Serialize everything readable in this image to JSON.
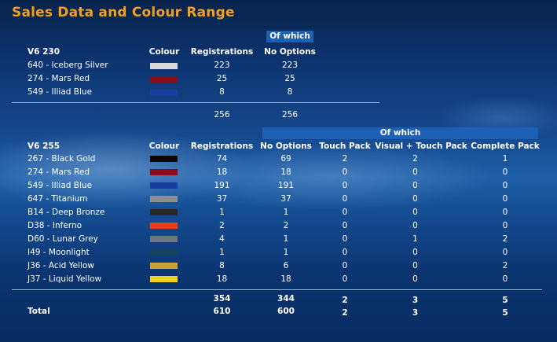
{
  "title": "Sales Data and Colour Range",
  "section1": {
    "model": "V6 230",
    "of_which": "Of which",
    "headers": {
      "colour": "Colour",
      "registrations": "Registrations",
      "no_options": "No Options"
    },
    "rows": [
      {
        "name": "640 - Iceberg Silver",
        "color": "#d9d9d9",
        "registrations": "223",
        "no_options": "223"
      },
      {
        "name": "274 - Mars Red",
        "color": "#8b0d1c",
        "registrations": "25",
        "no_options": "25"
      },
      {
        "name": "549 - Illiad Blue",
        "color": "#1a3da0",
        "registrations": "8",
        "no_options": "8"
      }
    ],
    "totals": {
      "registrations": "256",
      "no_options": "256"
    }
  },
  "section2": {
    "model": "V6 255",
    "of_which": "Of which",
    "headers": {
      "colour": "Colour",
      "registrations": "Registrations",
      "no_options": "No Options",
      "touch_pack": "Touch Pack",
      "visual_touch_pack": "Visual + Touch Pack",
      "complete_pack": "Complete Pack"
    },
    "rows": [
      {
        "name": "267 - Black Gold",
        "color": "#050505",
        "registrations": "74",
        "no_options": "69",
        "touch_pack": "2",
        "visual_touch_pack": "2",
        "complete_pack": "1"
      },
      {
        "name": "274 - Mars Red",
        "color": "#8b0d1c",
        "registrations": "18",
        "no_options": "18",
        "touch_pack": "0",
        "visual_touch_pack": "0",
        "complete_pack": "0"
      },
      {
        "name": "549 - Illiad Blue",
        "color": "#1a3da0",
        "registrations": "191",
        "no_options": "191",
        "touch_pack": "0",
        "visual_touch_pack": "0",
        "complete_pack": "0"
      },
      {
        "name": "647 - Titanium",
        "color": "#8a8f96",
        "registrations": "37",
        "no_options": "37",
        "touch_pack": "0",
        "visual_touch_pack": "0",
        "complete_pack": "0"
      },
      {
        "name": "B14 - Deep Bronze",
        "color": "#2a2826",
        "registrations": "1",
        "no_options": "1",
        "touch_pack": "0",
        "visual_touch_pack": "0",
        "complete_pack": "0"
      },
      {
        "name": "D38 - Inferno",
        "color": "#e8401c",
        "registrations": "2",
        "no_options": "2",
        "touch_pack": "0",
        "visual_touch_pack": "0",
        "complete_pack": "0"
      },
      {
        "name": "D60 - Lunar Grey",
        "color": "#6f7680",
        "registrations": "4",
        "no_options": "1",
        "touch_pack": "0",
        "visual_touch_pack": "1",
        "complete_pack": "2"
      },
      {
        "name": "I49 - Moonlight",
        "color": "#12425e",
        "registrations": "1",
        "no_options": "1",
        "touch_pack": "0",
        "visual_touch_pack": "0",
        "complete_pack": "0"
      },
      {
        "name": "J36 - Acid Yellow",
        "color": "#c9a23a",
        "registrations": "8",
        "no_options": "6",
        "touch_pack": "0",
        "visual_touch_pack": "0",
        "complete_pack": "2"
      },
      {
        "name": "J37 - Liquid Yellow",
        "color": "#f0d020",
        "registrations": "18",
        "no_options": "18",
        "touch_pack": "0",
        "visual_touch_pack": "0",
        "complete_pack": "0"
      }
    ],
    "subtotals": {
      "registrations": "354",
      "no_options": "344",
      "touch_pack": "2",
      "visual_touch_pack": "3",
      "complete_pack": "5"
    },
    "total": {
      "label": "Total",
      "registrations": "610",
      "no_options": "600",
      "touch_pack": "2",
      "visual_touch_pack": "3",
      "complete_pack": "5"
    }
  }
}
